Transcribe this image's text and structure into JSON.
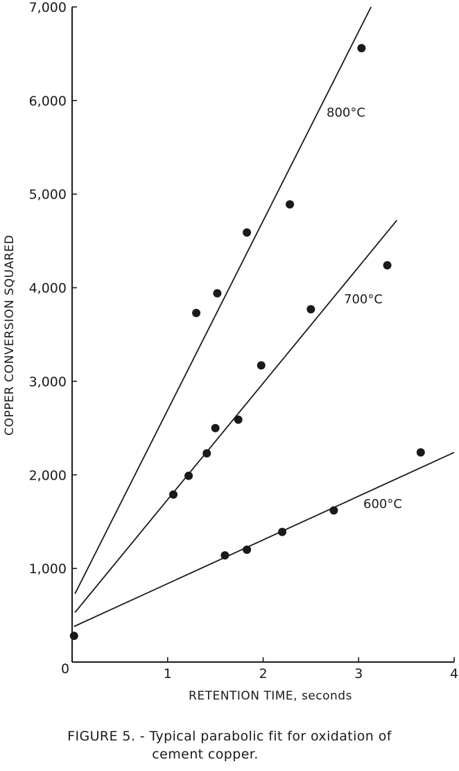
{
  "chart_data": {
    "type": "scatter",
    "title": "",
    "xlabel": "RETENTION TIME, seconds",
    "ylabel": "COPPER CONVERSION SQUARED",
    "xlim": [
      0,
      4
    ],
    "ylim": [
      0,
      7000
    ],
    "x_ticks": [
      0,
      1,
      2,
      3,
      4
    ],
    "y_ticks": [
      1000,
      2000,
      3000,
      4000,
      5000,
      6000,
      7000
    ],
    "x_tick_labels": [
      "0",
      "1",
      "2",
      "3",
      "4"
    ],
    "y_tick_labels": [
      "1,000",
      "2,000",
      "3,000",
      "4,000",
      "5,000",
      "6,000",
      "7,000"
    ],
    "origin_label": "0",
    "series": [
      {
        "name": "800°C",
        "points": [
          [
            1.3,
            3730
          ],
          [
            1.52,
            3940
          ],
          [
            1.83,
            4590
          ],
          [
            2.28,
            4890
          ],
          [
            3.03,
            6560
          ]
        ],
        "fit_line": [
          [
            0.03,
            730
          ],
          [
            3.13,
            7000
          ]
        ]
      },
      {
        "name": "700°C",
        "points": [
          [
            1.06,
            1790
          ],
          [
            1.22,
            1990
          ],
          [
            1.41,
            2230
          ],
          [
            1.5,
            2500
          ],
          [
            1.74,
            2590
          ],
          [
            1.98,
            3170
          ],
          [
            2.5,
            3770
          ],
          [
            3.3,
            4240
          ]
        ],
        "fit_line": [
          [
            0.03,
            530
          ],
          [
            3.4,
            4720
          ]
        ]
      },
      {
        "name": "600°C",
        "points": [
          [
            0.02,
            280
          ],
          [
            1.6,
            1140
          ],
          [
            1.83,
            1200
          ],
          [
            2.2,
            1390
          ],
          [
            2.74,
            1620
          ],
          [
            3.65,
            2240
          ]
        ],
        "fit_line": [
          [
            0.02,
            380
          ],
          [
            4.0,
            2240
          ]
        ]
      }
    ],
    "grid": false,
    "legend": "none"
  },
  "caption": {
    "line1": "FIGURE 5. - Typical parabolic fit for oxidation of",
    "line2": "cement copper."
  }
}
